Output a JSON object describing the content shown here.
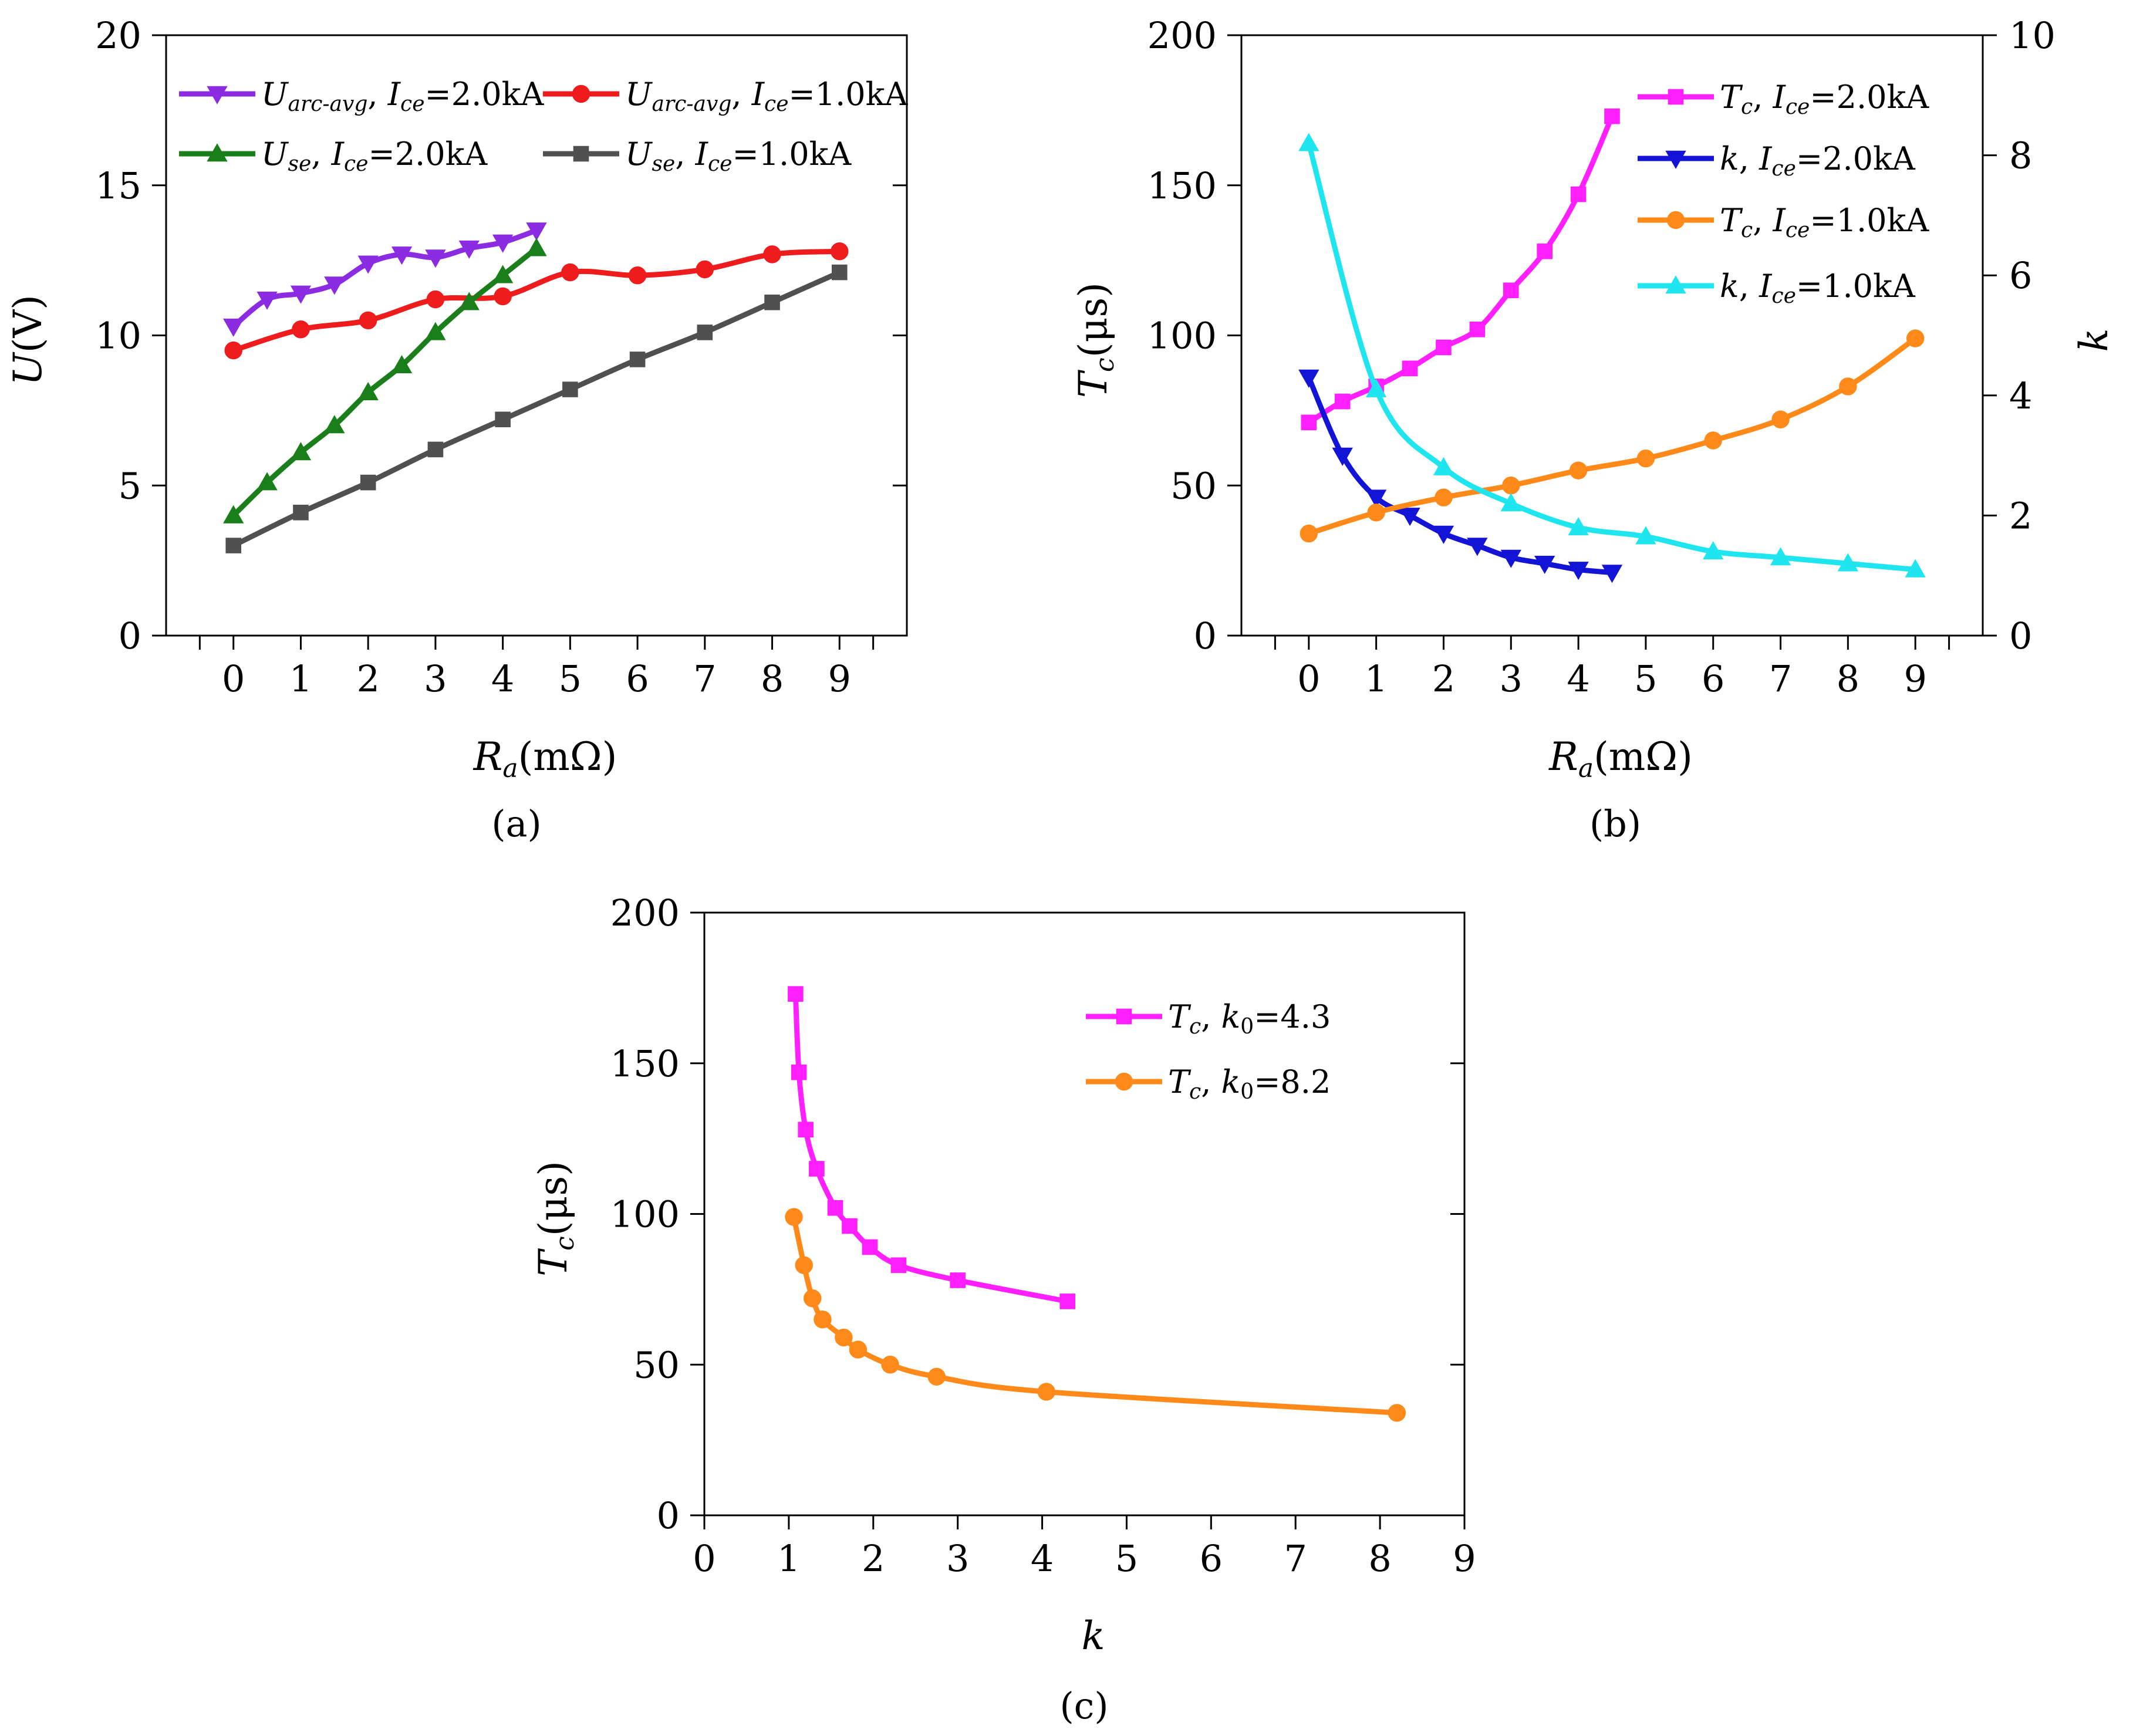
{
  "colors": {
    "purple": "#8b2be2",
    "red": "#ee1c1c",
    "green": "#1a7f1a",
    "gray": "#505050",
    "magenta": "#ff1fff",
    "blue": "#1414d6",
    "orange": "#ff8a1a",
    "cyan": "#1fe6ee"
  },
  "chart_data": [
    {
      "id": "a",
      "type": "line",
      "caption": "(a)",
      "xlabel": {
        "main": "R",
        "sub": "a",
        "unit": "(mΩ)"
      },
      "ylabel": {
        "main": "U",
        "unit": "(V)"
      },
      "xlim": [
        -1,
        10
      ],
      "ylim": [
        0,
        20
      ],
      "xticks": [
        0,
        1,
        2,
        3,
        4,
        5,
        6,
        7,
        8,
        9
      ],
      "yticks": [
        0,
        5,
        10,
        15,
        20
      ],
      "series": [
        {
          "name": "Uarc-avg, Ice=2.0kA",
          "sym": "U",
          "symsub": "arc-avg",
          "cur": "I",
          "cursub": "ce",
          "val": "=2.0kA",
          "marker": "tri-down",
          "color": "#8b2be2",
          "x": [
            0,
            0.5,
            1,
            1.5,
            2,
            2.5,
            3,
            3.5,
            4,
            4.5
          ],
          "y": [
            10.3,
            11.2,
            11.4,
            11.7,
            12.4,
            12.7,
            12.6,
            12.9,
            13.1,
            13.5
          ]
        },
        {
          "name": "Uarc-avg, Ice=1.0kA",
          "sym": "U",
          "symsub": "arc-avg",
          "cur": "I",
          "cursub": "ce",
          "val": "=1.0kA",
          "marker": "circle",
          "color": "#ee1c1c",
          "x": [
            0,
            1,
            2,
            3,
            4,
            5,
            6,
            7,
            8,
            9
          ],
          "y": [
            9.5,
            10.2,
            10.5,
            11.2,
            11.3,
            12.1,
            12.0,
            12.2,
            12.7,
            12.8
          ]
        },
        {
          "name": "Use, Ice=2.0kA",
          "sym": "U",
          "symsub": "se",
          "cur": "I",
          "cursub": "ce",
          "val": "=2.0kA",
          "marker": "tri-up",
          "color": "#1a7f1a",
          "x": [
            0,
            0.5,
            1,
            1.5,
            2,
            2.5,
            3,
            3.5,
            4,
            4.5
          ],
          "y": [
            4.0,
            5.1,
            6.1,
            7.0,
            8.1,
            9.0,
            10.1,
            11.1,
            12.0,
            12.9
          ]
        },
        {
          "name": "Use, Ice=1.0kA",
          "sym": "U",
          "symsub": "se",
          "cur": "I",
          "cursub": "ce",
          "val": "=1.0kA",
          "marker": "square",
          "color": "#505050",
          "x": [
            0,
            1,
            2,
            3,
            4,
            5,
            6,
            7,
            8,
            9
          ],
          "y": [
            3.0,
            4.1,
            5.1,
            6.2,
            7.2,
            8.2,
            9.2,
            10.1,
            11.1,
            12.1
          ]
        }
      ]
    },
    {
      "id": "b",
      "type": "line",
      "caption": "(b)",
      "xlabel": {
        "main": "R",
        "sub": "a",
        "unit": "(mΩ)"
      },
      "ylabel": {
        "main": "T",
        "sub": "c",
        "unit": "(μs)"
      },
      "y2label": {
        "main": "k"
      },
      "xlim": [
        -1,
        10
      ],
      "ylim": [
        0,
        200
      ],
      "y2lim": [
        0,
        10
      ],
      "xticks": [
        0,
        1,
        2,
        3,
        4,
        5,
        6,
        7,
        8,
        9
      ],
      "yticks": [
        0,
        50,
        100,
        150,
        200
      ],
      "y2ticks": [
        0,
        2,
        4,
        6,
        8,
        10
      ],
      "series": [
        {
          "name": "Tc, Ice=2.0kA",
          "sym": "T",
          "symsub": "c",
          "cur": "I",
          "cursub": "ce",
          "val": "=2.0kA",
          "marker": "square",
          "color": "#ff1fff",
          "axis": "left",
          "x": [
            0,
            0.5,
            1,
            1.5,
            2,
            2.5,
            3,
            3.5,
            4,
            4.5
          ],
          "y": [
            71,
            78,
            83,
            89,
            96,
            102,
            115,
            128,
            147,
            173
          ]
        },
        {
          "name": "k, Ice=2.0kA",
          "sym": "k",
          "symsub": "",
          "cur": "I",
          "cursub": "ce",
          "val": "=2.0kA",
          "marker": "tri-down",
          "color": "#1414d6",
          "axis": "right",
          "x": [
            0,
            0.5,
            1,
            1.5,
            2,
            2.5,
            3,
            3.5,
            4,
            4.5
          ],
          "y": [
            4.3,
            3.0,
            2.3,
            2.0,
            1.7,
            1.5,
            1.3,
            1.2,
            1.1,
            1.05
          ]
        },
        {
          "name": "Tc, Ice=1.0kA",
          "sym": "T",
          "symsub": "c",
          "cur": "I",
          "cursub": "ce",
          "val": "=1.0kA",
          "marker": "circle",
          "color": "#ff8a1a",
          "axis": "left",
          "x": [
            0,
            1,
            2,
            3,
            4,
            5,
            6,
            7,
            8,
            9
          ],
          "y": [
            34,
            41,
            46,
            50,
            55,
            59,
            65,
            72,
            83,
            99
          ]
        },
        {
          "name": "k, Ice=1.0kA",
          "sym": "k",
          "symsub": "",
          "cur": "I",
          "cursub": "ce",
          "val": "=1.0kA",
          "marker": "tri-up",
          "color": "#1fe6ee",
          "axis": "right",
          "x": [
            0,
            1,
            2,
            3,
            4,
            5,
            6,
            7,
            8,
            9
          ],
          "y": [
            8.2,
            4.1,
            2.8,
            2.2,
            1.8,
            1.65,
            1.4,
            1.3,
            1.2,
            1.1
          ]
        }
      ]
    },
    {
      "id": "c",
      "type": "line",
      "caption": "(c)",
      "xlabel": {
        "main": "k"
      },
      "ylabel": {
        "main": "T",
        "sub": "c",
        "unit": "(μs)"
      },
      "xlim": [
        0,
        9
      ],
      "ylim": [
        0,
        200
      ],
      "xticks": [
        0,
        1,
        2,
        3,
        4,
        5,
        6,
        7,
        8,
        9
      ],
      "yticks": [
        0,
        50,
        100,
        150,
        200
      ],
      "series": [
        {
          "name": "Tc, k0=4.3",
          "sym": "T",
          "symsub": "c",
          "cur": "k",
          "cursub": "0",
          "val": "=4.3",
          "marker": "square",
          "color": "#ff1fff",
          "x": [
            4.3,
            3.0,
            2.3,
            1.96,
            1.72,
            1.55,
            1.33,
            1.2,
            1.12,
            1.08
          ],
          "y": [
            71,
            78,
            83,
            89,
            96,
            102,
            115,
            128,
            147,
            173
          ]
        },
        {
          "name": "Tc, k0=8.2",
          "sym": "T",
          "symsub": "c",
          "cur": "k",
          "cursub": "0",
          "val": "=8.2",
          "marker": "circle",
          "color": "#ff8a1a",
          "x": [
            8.2,
            4.05,
            2.75,
            2.2,
            1.82,
            1.65,
            1.4,
            1.28,
            1.18,
            1.06
          ],
          "y": [
            34,
            41,
            46,
            50,
            55,
            59,
            65,
            72,
            83,
            99
          ]
        }
      ]
    }
  ]
}
